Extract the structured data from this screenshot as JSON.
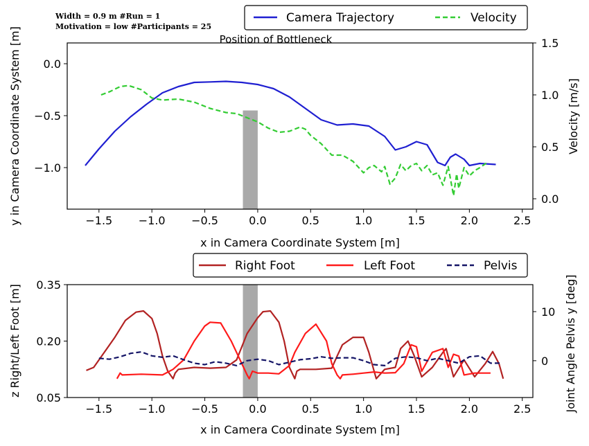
{
  "info": {
    "line1": "Width = 0.9 m        #Run = 1",
    "line2": "Motivation = low   #Participants = 25"
  },
  "bottleneck_label": "Position of Bottleneck",
  "colors": {
    "camera": "#1f1fd1",
    "velocity": "#33cc33",
    "right_foot": "#b22222",
    "left_foot": "#ff1a1a",
    "pelvis": "#141466",
    "bottleneck": "#a9a9a9"
  },
  "chart_data": [
    {
      "type": "line",
      "title": "",
      "xlabel": "x in Camera Coordinate System [m]",
      "ylabel": "y in Camera Coordinate System [m]",
      "y2label": "Velocity [m/s]",
      "xlim": [
        -1.8,
        2.6
      ],
      "ylim": [
        -1.4,
        0.2
      ],
      "y2lim": [
        -0.1,
        1.5
      ],
      "xticks": [
        "−1.5",
        "−1.0",
        "−0.5",
        "0.0",
        "0.5",
        "1.0",
        "1.5",
        "2.0",
        "2.5"
      ],
      "xtick_values": [
        -1.5,
        -1.0,
        -0.5,
        0.0,
        0.5,
        1.0,
        1.5,
        2.0,
        2.5
      ],
      "yticks": [
        "0.0",
        "−0.5",
        "−1.0"
      ],
      "ytick_values": [
        0.0,
        -0.5,
        -1.0
      ],
      "y2ticks": [
        "1.5",
        "1.0",
        "0.5",
        "0.0"
      ],
      "y2tick_values": [
        1.5,
        1.0,
        0.5,
        0.0
      ],
      "legend_position": "top-right",
      "bottleneck_x": [
        -0.14,
        0.0
      ],
      "bottleneck_y_top": -0.45,
      "series": [
        {
          "name": "Camera Trajectory",
          "axis": "left",
          "style": "solid",
          "x": [
            -1.63,
            -1.5,
            -1.35,
            -1.2,
            -1.05,
            -0.9,
            -0.75,
            -0.6,
            -0.45,
            -0.3,
            -0.15,
            0.0,
            0.15,
            0.3,
            0.45,
            0.6,
            0.75,
            0.9,
            1.05,
            1.2,
            1.3,
            1.4,
            1.5,
            1.6,
            1.7,
            1.77,
            1.82,
            1.87,
            1.95,
            2.0,
            2.1,
            2.25
          ],
          "y": [
            -0.98,
            -0.82,
            -0.65,
            -0.51,
            -0.39,
            -0.28,
            -0.22,
            -0.18,
            -0.175,
            -0.17,
            -0.18,
            -0.2,
            -0.24,
            -0.32,
            -0.43,
            -0.54,
            -0.59,
            -0.58,
            -0.6,
            -0.7,
            -0.83,
            -0.8,
            -0.75,
            -0.78,
            -0.95,
            -0.98,
            -0.9,
            -0.87,
            -0.92,
            -0.98,
            -0.96,
            -0.97
          ]
        },
        {
          "name": "Velocity",
          "axis": "right",
          "style": "dashed",
          "x": [
            -1.48,
            -1.4,
            -1.3,
            -1.22,
            -1.1,
            -1.0,
            -0.9,
            -0.75,
            -0.6,
            -0.45,
            -0.3,
            -0.2,
            -0.1,
            0.0,
            0.1,
            0.2,
            0.3,
            0.4,
            0.45,
            0.5,
            0.6,
            0.7,
            0.8,
            0.9,
            1.0,
            1.05,
            1.1,
            1.17,
            1.2,
            1.25,
            1.3,
            1.35,
            1.4,
            1.45,
            1.5,
            1.55,
            1.6,
            1.65,
            1.7,
            1.75,
            1.8,
            1.85,
            1.88,
            1.9,
            1.95,
            2.0,
            2.05,
            2.1,
            2.17
          ],
          "y": [
            1.0,
            1.03,
            1.08,
            1.09,
            1.05,
            0.97,
            0.95,
            0.96,
            0.93,
            0.87,
            0.83,
            0.82,
            0.78,
            0.74,
            0.68,
            0.64,
            0.65,
            0.69,
            0.67,
            0.61,
            0.53,
            0.42,
            0.42,
            0.36,
            0.25,
            0.3,
            0.32,
            0.26,
            0.31,
            0.14,
            0.2,
            0.33,
            0.27,
            0.32,
            0.34,
            0.27,
            0.32,
            0.23,
            0.25,
            0.13,
            0.31,
            0.03,
            0.24,
            0.1,
            0.3,
            0.22,
            0.27,
            0.3,
            0.35
          ]
        }
      ]
    },
    {
      "type": "line",
      "title": "",
      "xlabel": "x in Camera Coordinate System [m]",
      "ylabel": "z Right/Left Foot [m]",
      "y2label": "Joint Angle Pelvis y [deg]",
      "xlim": [
        -1.8,
        2.6
      ],
      "ylim": [
        0.05,
        0.35
      ],
      "y2lim": [
        -7.5,
        15.5
      ],
      "xticks": [
        "−1.5",
        "−1.0",
        "−0.5",
        "0.0",
        "0.5",
        "1.0",
        "1.5",
        "2.0",
        "2.5"
      ],
      "xtick_values": [
        -1.5,
        -1.0,
        -0.5,
        0.0,
        0.5,
        1.0,
        1.5,
        2.0,
        2.5
      ],
      "yticks": [
        "0.35",
        "0.20",
        "0.05"
      ],
      "ytick_values": [
        0.35,
        0.2,
        0.05
      ],
      "y2ticks": [
        "10",
        "0"
      ],
      "y2tick_values": [
        10,
        0
      ],
      "legend_position": "top-right",
      "bottleneck_x": [
        -0.14,
        0.0
      ],
      "series": [
        {
          "name": "Right Foot",
          "axis": "left",
          "style": "solid",
          "x": [
            -1.62,
            -1.55,
            -1.45,
            -1.35,
            -1.25,
            -1.15,
            -1.08,
            -1.0,
            -0.95,
            -0.9,
            -0.85,
            -0.8,
            -0.78,
            -0.75,
            -0.6,
            -0.45,
            -0.3,
            -0.2,
            -0.1,
            0.0,
            0.05,
            0.12,
            0.2,
            0.25,
            0.3,
            0.35,
            0.37,
            0.4,
            0.55,
            0.7,
            0.75,
            0.8,
            0.9,
            1.0,
            1.05,
            1.1,
            1.12,
            1.2,
            1.3,
            1.35,
            1.42,
            1.48,
            1.55,
            1.65,
            1.75,
            1.78,
            1.85,
            1.95,
            2.05,
            2.15,
            2.22,
            2.28,
            2.32
          ],
          "y": [
            0.122,
            0.13,
            0.17,
            0.21,
            0.255,
            0.277,
            0.28,
            0.26,
            0.22,
            0.16,
            0.12,
            0.1,
            0.115,
            0.125,
            0.13,
            0.128,
            0.13,
            0.15,
            0.22,
            0.262,
            0.278,
            0.28,
            0.25,
            0.2,
            0.13,
            0.1,
            0.12,
            0.125,
            0.125,
            0.128,
            0.16,
            0.19,
            0.21,
            0.21,
            0.17,
            0.12,
            0.1,
            0.125,
            0.13,
            0.18,
            0.2,
            0.16,
            0.105,
            0.13,
            0.17,
            0.18,
            0.105,
            0.15,
            0.105,
            0.14,
            0.172,
            0.14,
            0.1
          ]
        },
        {
          "name": "Left Foot",
          "axis": "left",
          "style": "solid",
          "x": [
            -1.33,
            -1.3,
            -1.28,
            -1.1,
            -0.9,
            -0.8,
            -0.7,
            -0.6,
            -0.5,
            -0.45,
            -0.35,
            -0.25,
            -0.15,
            -0.1,
            -0.08,
            -0.05,
            0.0,
            0.1,
            0.2,
            0.3,
            0.35,
            0.45,
            0.55,
            0.65,
            0.7,
            0.75,
            0.78,
            0.8,
            0.9,
            1.0,
            1.1,
            1.2,
            1.3,
            1.38,
            1.45,
            1.5,
            1.55,
            1.65,
            1.75,
            1.8,
            1.85,
            1.9,
            1.95,
            2.05,
            2.2
          ],
          "y": [
            0.1,
            0.115,
            0.11,
            0.112,
            0.11,
            0.125,
            0.15,
            0.2,
            0.24,
            0.25,
            0.248,
            0.2,
            0.14,
            0.11,
            0.1,
            0.12,
            0.115,
            0.115,
            0.113,
            0.135,
            0.17,
            0.22,
            0.245,
            0.2,
            0.14,
            0.11,
            0.1,
            0.11,
            0.112,
            0.115,
            0.118,
            0.115,
            0.116,
            0.14,
            0.19,
            0.185,
            0.12,
            0.17,
            0.18,
            0.13,
            0.165,
            0.16,
            0.11,
            0.115,
            0.115
          ]
        },
        {
          "name": "Pelvis",
          "axis": "right",
          "style": "dashed",
          "x": [
            -1.5,
            -1.4,
            -1.3,
            -1.2,
            -1.1,
            -1.0,
            -0.9,
            -0.8,
            -0.7,
            -0.6,
            -0.5,
            -0.4,
            -0.3,
            -0.2,
            -0.1,
            0.0,
            0.1,
            0.2,
            0.3,
            0.4,
            0.5,
            0.6,
            0.7,
            0.8,
            0.9,
            1.0,
            1.1,
            1.2,
            1.3,
            1.4,
            1.5,
            1.6,
            1.7,
            1.8,
            1.9,
            2.0,
            2.1,
            2.2,
            2.3
          ],
          "y": [
            0.5,
            0.3,
            0.8,
            1.5,
            1.8,
            1.0,
            0.7,
            1.0,
            0.2,
            -0.5,
            -0.8,
            -0.2,
            -0.5,
            -1.0,
            0.0,
            0.3,
            0.0,
            -0.8,
            -0.3,
            0.2,
            0.4,
            0.8,
            0.5,
            0.6,
            0.6,
            0.0,
            -0.8,
            -1.0,
            0.5,
            0.8,
            0.6,
            0.0,
            0.5,
            0.0,
            -0.5,
            0.8,
            1.0,
            -0.5,
            -0.5
          ]
        }
      ]
    }
  ]
}
